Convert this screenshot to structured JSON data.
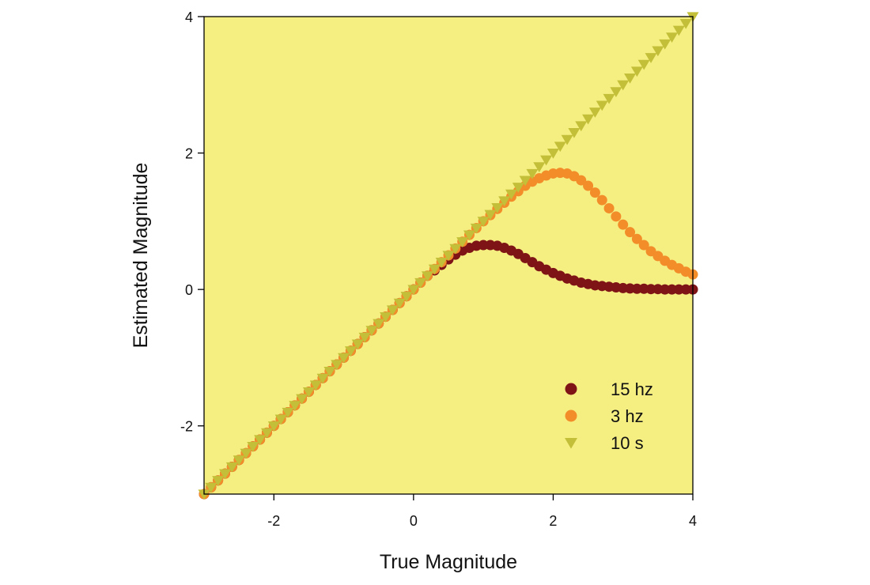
{
  "chart_data": {
    "type": "scatter",
    "title": "",
    "xlabel": "True Magnitude",
    "ylabel": "Estimated Magnitude",
    "xlim": [
      -3,
      4
    ],
    "ylim": [
      -3,
      4
    ],
    "xticks": [
      -2,
      0,
      2,
      4
    ],
    "yticks": [
      -2,
      0,
      2,
      4
    ],
    "xtick_labels": [
      "-2",
      "0",
      "2",
      "4"
    ],
    "ytick_labels": [
      "-2",
      "0",
      "2",
      "4"
    ],
    "grid": false,
    "legend_position": "bottom-right",
    "plot_background": "#f5ef82",
    "x": [
      -3.0,
      -2.9,
      -2.8,
      -2.7,
      -2.6,
      -2.5,
      -2.4,
      -2.3,
      -2.2,
      -2.1,
      -2.0,
      -1.9,
      -1.8,
      -1.7,
      -1.6,
      -1.5,
      -1.4,
      -1.3,
      -1.2,
      -1.1,
      -1.0,
      -0.9,
      -0.8,
      -0.7,
      -0.6,
      -0.5,
      -0.4,
      -0.3,
      -0.2,
      -0.1,
      0.0,
      0.1,
      0.2,
      0.3,
      0.4,
      0.5,
      0.6,
      0.7,
      0.8,
      0.9,
      1.0,
      1.1,
      1.2,
      1.3,
      1.4,
      1.5,
      1.6,
      1.7,
      1.8,
      1.9,
      2.0,
      2.1,
      2.2,
      2.3,
      2.4,
      2.5,
      2.6,
      2.7,
      2.8,
      2.9,
      3.0,
      3.1,
      3.2,
      3.3,
      3.4,
      3.5,
      3.6,
      3.7,
      3.8,
      3.9,
      4.0
    ],
    "series": [
      {
        "name": "15 hz",
        "marker": "circle",
        "color": "#7f1416",
        "values": [
          -3.0,
          -2.9,
          -2.8,
          -2.7,
          -2.6,
          -2.5,
          -2.4,
          -2.3,
          -2.2,
          -2.1,
          -2.0,
          -1.9,
          -1.8,
          -1.7,
          -1.6,
          -1.5,
          -1.4,
          -1.3,
          -1.2,
          -1.1,
          -1.0,
          -0.9,
          -0.8,
          -0.7,
          -0.6,
          -0.5,
          -0.4,
          -0.3,
          -0.2,
          -0.1,
          0.0,
          0.1,
          0.2,
          0.28,
          0.36,
          0.44,
          0.51,
          0.57,
          0.61,
          0.64,
          0.65,
          0.65,
          0.64,
          0.61,
          0.57,
          0.52,
          0.46,
          0.4,
          0.34,
          0.29,
          0.24,
          0.2,
          0.16,
          0.13,
          0.1,
          0.08,
          0.06,
          0.05,
          0.04,
          0.03,
          0.02,
          0.015,
          0.01,
          0.01,
          0.005,
          0.005,
          0.0,
          0.0,
          0.0,
          0.0,
          0.0
        ]
      },
      {
        "name": "3 hz",
        "marker": "circle",
        "color": "#f28d2a",
        "values": [
          -3.0,
          -2.9,
          -2.8,
          -2.7,
          -2.6,
          -2.5,
          -2.4,
          -2.3,
          -2.2,
          -2.1,
          -2.0,
          -1.9,
          -1.8,
          -1.7,
          -1.6,
          -1.5,
          -1.4,
          -1.3,
          -1.2,
          -1.1,
          -1.0,
          -0.9,
          -0.8,
          -0.7,
          -0.6,
          -0.5,
          -0.4,
          -0.3,
          -0.2,
          -0.1,
          0.0,
          0.1,
          0.2,
          0.3,
          0.4,
          0.5,
          0.6,
          0.7,
          0.8,
          0.9,
          1.0,
          1.09,
          1.18,
          1.27,
          1.36,
          1.44,
          1.52,
          1.58,
          1.63,
          1.67,
          1.7,
          1.71,
          1.7,
          1.66,
          1.6,
          1.52,
          1.42,
          1.31,
          1.19,
          1.07,
          0.95,
          0.84,
          0.74,
          0.65,
          0.56,
          0.49,
          0.42,
          0.36,
          0.31,
          0.26,
          0.22
        ]
      },
      {
        "name": "10 s",
        "marker": "triangle-down",
        "color": "#c3bf38",
        "values": [
          -3.0,
          -2.9,
          -2.8,
          -2.7,
          -2.6,
          -2.5,
          -2.4,
          -2.3,
          -2.2,
          -2.1,
          -2.0,
          -1.9,
          -1.8,
          -1.7,
          -1.6,
          -1.5,
          -1.4,
          -1.3,
          -1.2,
          -1.1,
          -1.0,
          -0.9,
          -0.8,
          -0.7,
          -0.6,
          -0.5,
          -0.4,
          -0.3,
          -0.2,
          -0.1,
          0.0,
          0.1,
          0.2,
          0.3,
          0.4,
          0.5,
          0.6,
          0.7,
          0.8,
          0.9,
          1.0,
          1.1,
          1.2,
          1.3,
          1.4,
          1.5,
          1.6,
          1.7,
          1.8,
          1.9,
          2.0,
          2.1,
          2.2,
          2.3,
          2.4,
          2.5,
          2.6,
          2.7,
          2.8,
          2.9,
          3.0,
          3.1,
          3.2,
          3.3,
          3.4,
          3.5,
          3.6,
          3.7,
          3.8,
          3.9,
          4.0
        ]
      }
    ]
  }
}
